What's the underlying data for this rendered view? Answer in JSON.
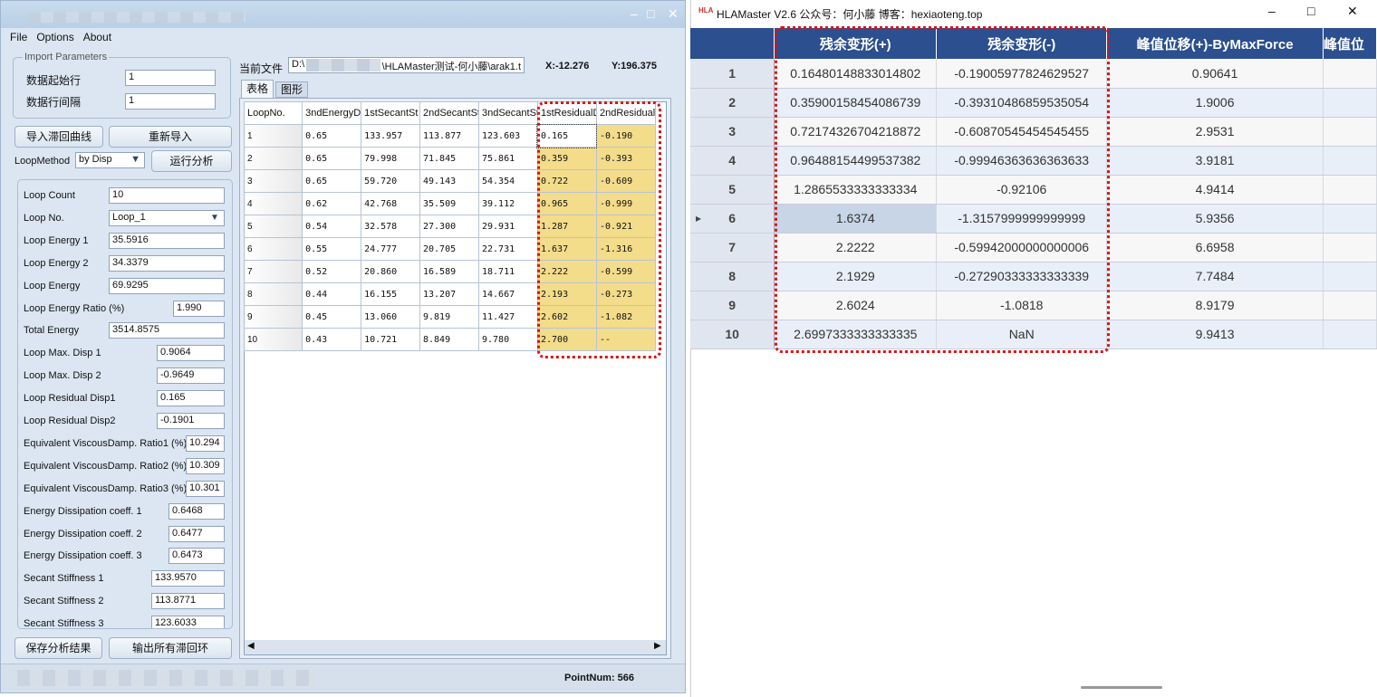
{
  "left_window": {
    "menu": [
      "File",
      "Options",
      "About"
    ],
    "import_group": "Import Parameters",
    "start_row_label": "数据起始行",
    "start_row": "1",
    "row_interval_label": "数据行间隔",
    "row_interval": "1",
    "import_btn": "导入滞回曲线",
    "reimport_btn": "重新导入",
    "loop_method_label": "LoopMethod",
    "loop_method": "by Disp",
    "run_btn": "运行分析",
    "fields": [
      {
        "label": "Loop Count",
        "value": "10"
      },
      {
        "label": "Loop No.",
        "value": "Loop_1"
      },
      {
        "label": "Loop Energy 1",
        "value": "35.5916"
      },
      {
        "label": "Loop Energy 2",
        "value": "34.3379"
      },
      {
        "label": "Loop Energy",
        "value": "69.9295"
      },
      {
        "label": "Loop Energy Ratio (%)",
        "value": "1.990"
      },
      {
        "label": "Total Energy",
        "value": "3514.8575"
      },
      {
        "label": "Loop Max. Disp 1",
        "value": "0.9064"
      },
      {
        "label": "Loop Max. Disp 2",
        "value": "-0.9649"
      },
      {
        "label": "Loop Residual Disp1",
        "value": "0.165"
      },
      {
        "label": "Loop Residual Disp2",
        "value": "-0.1901"
      },
      {
        "label": "Equivalent ViscousDamp. Ratio1 (%)",
        "value": "10.294"
      },
      {
        "label": "Equivalent ViscousDamp. Ratio2 (%)",
        "value": "10.309"
      },
      {
        "label": "Equivalent ViscousDamp. Ratio3 (%)",
        "value": "10.301"
      },
      {
        "label": "Energy Dissipation coeff. 1",
        "value": "0.6468"
      },
      {
        "label": "Energy Dissipation coeff. 2",
        "value": "0.6477"
      },
      {
        "label": "Energy Dissipation coeff. 3",
        "value": "0.6473"
      },
      {
        "label": "Secant Stiffness 1",
        "value": "133.9570"
      },
      {
        "label": "Secant Stiffness 2",
        "value": "113.8771"
      },
      {
        "label": "Secant Stiffness 3",
        "value": "123.6033"
      }
    ],
    "save_btn": "保存分析结果",
    "export_btn": "输出所有滞回环",
    "current_file_label": "当前文件",
    "current_file_prefix": "D:\\",
    "current_file_suffix": "\\HLAMaster测试-何小藤\\arak1.t",
    "x_readout": "X:-12.276",
    "y_readout": "Y:196.375",
    "tabs": [
      "表格",
      "图形"
    ],
    "table": {
      "headers": [
        "LoopNo.",
        "3ndEnergyD",
        "1stSecantSt",
        "2ndSecantSt",
        "3ndSecantSt",
        "1stResidualD",
        "2ndResidual"
      ],
      "rows": [
        [
          "1",
          "0.65",
          "133.957",
          "113.877",
          "123.603",
          "0.165",
          "-0.190"
        ],
        [
          "2",
          "0.65",
          "79.998",
          "71.845",
          "75.861",
          "0.359",
          "-0.393"
        ],
        [
          "3",
          "0.65",
          "59.720",
          "49.143",
          "54.354",
          "0.722",
          "-0.609"
        ],
        [
          "4",
          "0.62",
          "42.768",
          "35.509",
          "39.112",
          "0.965",
          "-0.999"
        ],
        [
          "5",
          "0.54",
          "32.578",
          "27.300",
          "29.931",
          "1.287",
          "-0.921"
        ],
        [
          "6",
          "0.55",
          "24.777",
          "20.705",
          "22.731",
          "1.637",
          "-1.316"
        ],
        [
          "7",
          "0.52",
          "20.860",
          "16.589",
          "18.711",
          "2.222",
          "-0.599"
        ],
        [
          "8",
          "0.44",
          "16.155",
          "13.207",
          "14.667",
          "2.193",
          "-0.273"
        ],
        [
          "9",
          "0.45",
          "13.060",
          "9.819",
          "11.427",
          "2.602",
          "-1.082"
        ],
        [
          "10",
          "0.43",
          "10.721",
          "8.849",
          "9.780",
          "2.700",
          "--"
        ]
      ]
    },
    "point_num": "PointNum: 566"
  },
  "right_window": {
    "title": "HLAMaster V2.6 公众号：何小藤 博客：hexiaoteng.top",
    "headers": [
      "",
      "残余变形(+)",
      "残余变形(-)",
      "峰值位移(+)-ByMaxForce",
      "峰值位"
    ],
    "rows": [
      [
        "1",
        "0.16480148833014802",
        "-0.19005977824629527",
        "0.90641"
      ],
      [
        "2",
        "0.35900158454086739",
        "-0.39310486859535054",
        "1.9006"
      ],
      [
        "3",
        "0.72174326704218872",
        "-0.60870545454545455",
        "2.9531"
      ],
      [
        "4",
        "0.96488154499537382",
        "-0.99946363636363633",
        "3.9181"
      ],
      [
        "5",
        "1.2865533333333334",
        "-0.92106",
        "4.9414"
      ],
      [
        "6",
        "1.6374",
        "-1.3157999999999999",
        "5.9356"
      ],
      [
        "7",
        "2.2222",
        "-0.59942000000000006",
        "6.6958"
      ],
      [
        "8",
        "2.1929",
        "-0.27290333333333339",
        "7.7484"
      ],
      [
        "9",
        "2.6024",
        "-1.0818",
        "8.9179"
      ],
      [
        "10",
        "2.6997333333333335",
        "NaN",
        "9.9413"
      ]
    ],
    "selected_row": 6
  },
  "colors": {
    "header_blue": "#2b4f8f",
    "highlight_yellow": "#f3dc8a",
    "annotation_red": "#e01010"
  }
}
